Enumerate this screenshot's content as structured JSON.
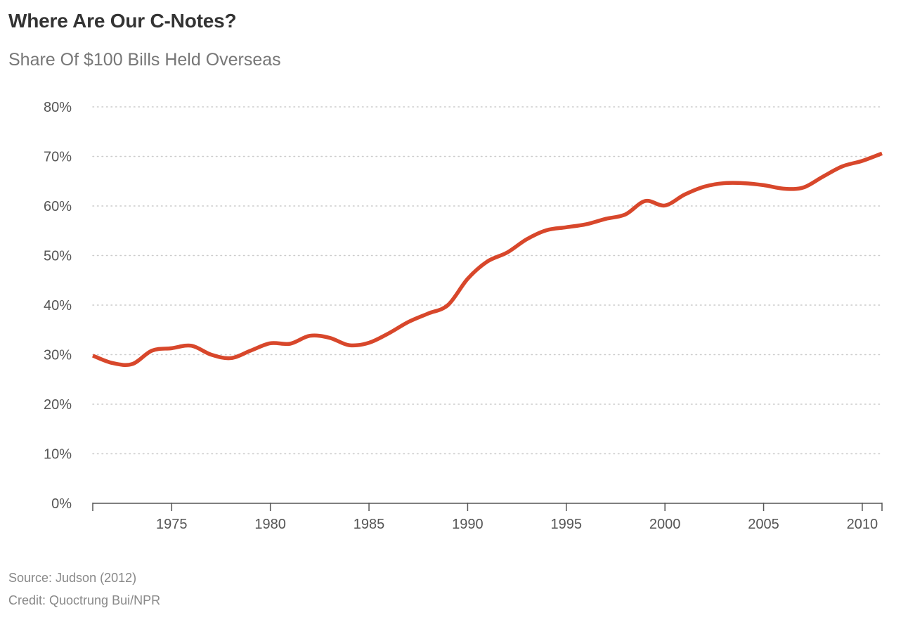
{
  "header": {
    "title": "Where Are Our C-Notes?",
    "subtitle": "Share Of $100 Bills Held Overseas"
  },
  "footer": {
    "source": "Source: Judson (2012)",
    "credit": "Credit: Quoctrung Bui/NPR"
  },
  "colors": {
    "line": "#d8472b",
    "grid": "#cccccc",
    "axis": "#555555",
    "text": "#555555"
  },
  "chart_data": {
    "type": "line",
    "title": "Where Are Our C-Notes?",
    "subtitle": "Share Of $100 Bills Held Overseas",
    "xlabel": "",
    "ylabel": "",
    "xlim": [
      1971,
      2011
    ],
    "ylim": [
      0,
      80
    ],
    "x_ticks": [
      1975,
      1980,
      1985,
      1990,
      1995,
      2000,
      2005,
      2010
    ],
    "y_ticks": [
      0,
      10,
      20,
      30,
      40,
      50,
      60,
      70,
      80
    ],
    "y_tick_labels": [
      "0%",
      "10%",
      "20%",
      "30%",
      "40%",
      "50%",
      "60%",
      "70%",
      "80%"
    ],
    "grid": "horizontal dotted",
    "legend": "none",
    "series": [
      {
        "x": [
          1971,
          1972,
          1973,
          1974,
          1975,
          1976,
          1977,
          1978,
          1979,
          1980,
          1981,
          1982,
          1983,
          1984,
          1985,
          1986,
          1987,
          1988,
          1989,
          1990,
          1991,
          1992,
          1993,
          1994,
          1995,
          1996,
          1997,
          1998,
          1999,
          2000,
          2001,
          2002,
          2003,
          2004,
          2005,
          2006,
          2007,
          2008,
          2009,
          2010,
          2011
        ],
        "values": [
          29.8,
          28.3,
          28.1,
          30.8,
          31.3,
          31.8,
          30.0,
          29.3,
          30.8,
          32.3,
          32.2,
          33.8,
          33.4,
          31.9,
          32.4,
          34.3,
          36.6,
          38.3,
          40.0,
          45.3,
          48.8,
          50.6,
          53.3,
          55.1,
          55.7,
          56.3,
          57.4,
          58.3,
          61.0,
          60.1,
          62.3,
          63.9,
          64.6,
          64.6,
          64.2,
          63.5,
          63.7,
          65.9,
          68.0,
          69.1,
          70.6
        ]
      }
    ]
  }
}
